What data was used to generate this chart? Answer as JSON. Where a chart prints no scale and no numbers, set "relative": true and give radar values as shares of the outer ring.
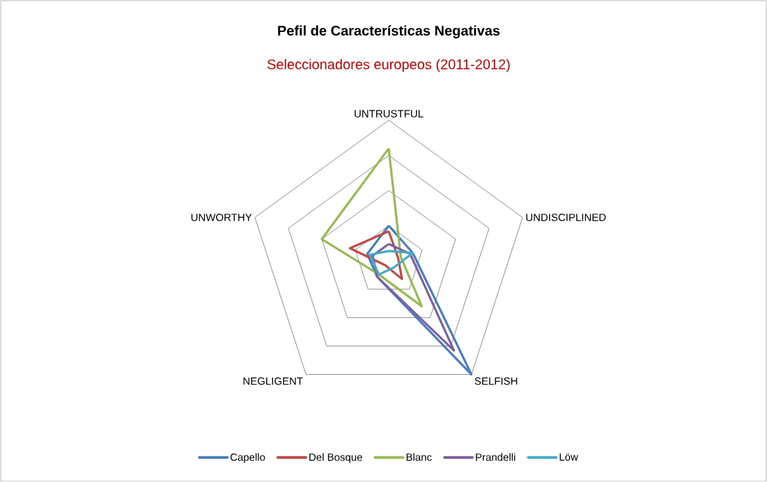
{
  "chart_data": {
    "type": "radar",
    "title": "Pefil de Características Negativas",
    "subtitle": "Seleccionadores europeos (2011-2012)",
    "categories": [
      "UNTRUSTFUL",
      "UNDISCIPLINED",
      "SELFISH",
      "NEGLIGENT",
      "UNWORTHY"
    ],
    "relative": true,
    "grid": true,
    "legend": "bottom",
    "marker": "none",
    "line_style": "solid",
    "series": [
      {
        "name": "Capello",
        "color": "#4a7ebb",
        "values": [
          0.25,
          0.18,
          1.0,
          0.14,
          0.16
        ]
      },
      {
        "name": "Del Bosque",
        "color": "#be4b48",
        "values": [
          0.21,
          0.07,
          0.16,
          0.04,
          0.29
        ]
      },
      {
        "name": "Blanc",
        "color": "#98b954",
        "values": [
          0.8,
          0.09,
          0.4,
          0.12,
          0.5
        ]
      },
      {
        "name": "Prandelli",
        "color": "#7d60a0",
        "values": [
          0.12,
          0.16,
          0.79,
          0.14,
          0.12
        ]
      },
      {
        "name": "Löw",
        "color": "#46aac5",
        "values": [
          0.07,
          0.18,
          0.06,
          0.12,
          0.14
        ]
      }
    ]
  }
}
